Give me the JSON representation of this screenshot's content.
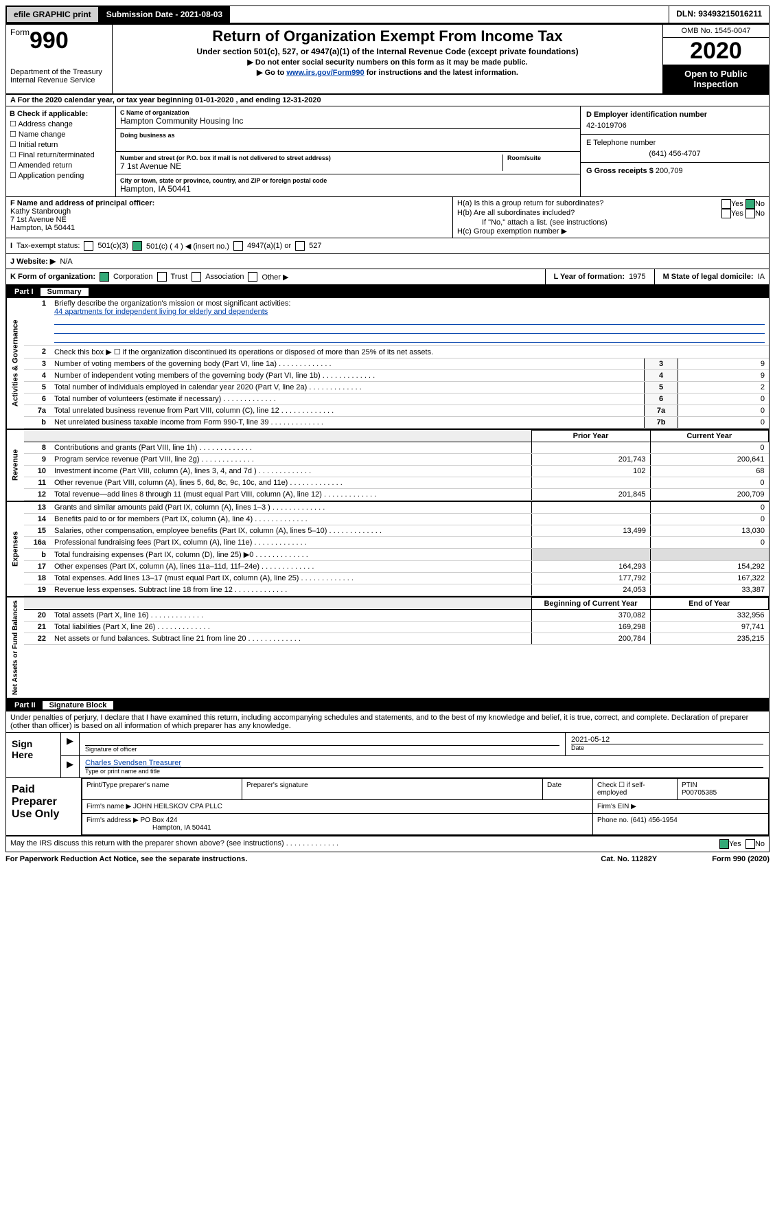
{
  "topbar": {
    "efile": "efile GRAPHIC print",
    "submission": "Submission Date - 2021-08-03",
    "dln": "DLN: 93493215016211"
  },
  "header": {
    "form_prefix": "Form",
    "form_num": "990",
    "dept": "Department of the Treasury\nInternal Revenue Service",
    "title": "Return of Organization Exempt From Income Tax",
    "sub": "Under section 501(c), 527, or 4947(a)(1) of the Internal Revenue Code (except private foundations)",
    "l1": "▶ Do not enter social security numbers on this form as it may be made public.",
    "l2_pre": "▶ Go to ",
    "l2_link": "www.irs.gov/Form990",
    "l2_post": " for instructions and the latest information.",
    "omb": "OMB No. 1545-0047",
    "year": "2020",
    "open": "Open to Public Inspection"
  },
  "period": "A For the 2020 calendar year, or tax year beginning 01-01-2020     , and ending 12-31-2020",
  "boxB": {
    "title": "B Check if applicable:",
    "items": [
      "Address change",
      "Name change",
      "Initial return",
      "Final return/terminated",
      "Amended return",
      "Application pending"
    ]
  },
  "boxC": {
    "label_name": "C Name of organization",
    "name": "Hampton Community Housing Inc",
    "label_dba": "Doing business as",
    "label_addr": "Number and street (or P.O. box if mail is not delivered to street address)",
    "room": "Room/suite",
    "addr": "7 1st Avenue NE",
    "label_city": "City or town, state or province, country, and ZIP or foreign postal code",
    "city": "Hampton, IA  50441"
  },
  "boxD": {
    "label": "D Employer identification number",
    "val": "42-1019706"
  },
  "boxE": {
    "label": "E Telephone number",
    "val": "(641) 456-4707"
  },
  "boxG": {
    "label": "G Gross receipts $",
    "val": "200,709"
  },
  "boxF": {
    "label": "F  Name and address of principal officer:",
    "l1": "Kathy Stanbrough",
    "l2": "7 1st Avenue NE",
    "l3": "Hampton, IA  50441"
  },
  "boxH": {
    "a": "H(a)  Is this a group return for subordinates?",
    "b": "H(b)  Are all subordinates included?",
    "bnote": "If \"No,\" attach a list. (see instructions)",
    "c": "H(c)  Group exemption number ▶",
    "yes": "Yes",
    "no": "No"
  },
  "rowI": {
    "label": "Tax-exempt status:",
    "o1": "501(c)(3)",
    "o2": "501(c) ( 4 ) ◀ (insert no.)",
    "o3": "4947(a)(1) or",
    "o4": "527"
  },
  "rowJ": {
    "label": "J   Website: ▶",
    "val": "N/A"
  },
  "rowK": {
    "label": "K Form of organization:",
    "o1": "Corporation",
    "o2": "Trust",
    "o3": "Association",
    "o4": "Other ▶"
  },
  "rowL": {
    "label": "L Year of formation:",
    "val": "1975"
  },
  "rowM": {
    "label": "M State of legal domicile:",
    "val": "IA"
  },
  "part1": {
    "num": "Part I",
    "title": "Summary"
  },
  "summary": {
    "side1": "Activities & Governance",
    "q1": "Briefly describe the organization's mission or most significant activities:",
    "q1v": "44 apartments for independent living for elderly and dependents",
    "q2": "Check this box ▶ ☐  if the organization discontinued its operations or disposed of more than 25% of its net assets.",
    "q3": "Number of voting members of the governing body (Part VI, line 1a)",
    "q4": "Number of independent voting members of the governing body (Part VI, line 1b)",
    "q5": "Total number of individuals employed in calendar year 2020 (Part V, line 2a)",
    "q6": "Total number of volunteers (estimate if necessary)",
    "q7a": "Total unrelated business revenue from Part VIII, column (C), line 12",
    "q7b": "Net unrelated business taxable income from Form 990-T, line 39",
    "v3": "9",
    "v4": "9",
    "v5": "2",
    "v6": "0",
    "v7a": "0",
    "v7b": "0"
  },
  "rev": {
    "side": "Revenue",
    "h_prior": "Prior Year",
    "h_curr": "Current Year",
    "rows": [
      {
        "n": "8",
        "t": "Contributions and grants (Part VIII, line 1h)",
        "p": "",
        "c": "0"
      },
      {
        "n": "9",
        "t": "Program service revenue (Part VIII, line 2g)",
        "p": "201,743",
        "c": "200,641"
      },
      {
        "n": "10",
        "t": "Investment income (Part VIII, column (A), lines 3, 4, and 7d )",
        "p": "102",
        "c": "68"
      },
      {
        "n": "11",
        "t": "Other revenue (Part VIII, column (A), lines 5, 6d, 8c, 9c, 10c, and 11e)",
        "p": "",
        "c": "0"
      },
      {
        "n": "12",
        "t": "Total revenue—add lines 8 through 11 (must equal Part VIII, column (A), line 12)",
        "p": "201,845",
        "c": "200,709"
      }
    ]
  },
  "exp": {
    "side": "Expenses",
    "rows": [
      {
        "n": "13",
        "t": "Grants and similar amounts paid (Part IX, column (A), lines 1–3 )",
        "p": "",
        "c": "0"
      },
      {
        "n": "14",
        "t": "Benefits paid to or for members (Part IX, column (A), line 4)",
        "p": "",
        "c": "0"
      },
      {
        "n": "15",
        "t": "Salaries, other compensation, employee benefits (Part IX, column (A), lines 5–10)",
        "p": "13,499",
        "c": "13,030"
      },
      {
        "n": "16a",
        "t": "Professional fundraising fees (Part IX, column (A), line 11e)",
        "p": "",
        "c": "0"
      },
      {
        "n": "b",
        "t": "Total fundraising expenses (Part IX, column (D), line 25) ▶0",
        "p": "—",
        "c": "—"
      },
      {
        "n": "17",
        "t": "Other expenses (Part IX, column (A), lines 11a–11d, 11f–24e)",
        "p": "164,293",
        "c": "154,292"
      },
      {
        "n": "18",
        "t": "Total expenses. Add lines 13–17 (must equal Part IX, column (A), line 25)",
        "p": "177,792",
        "c": "167,322"
      },
      {
        "n": "19",
        "t": "Revenue less expenses. Subtract line 18 from line 12",
        "p": "24,053",
        "c": "33,387"
      }
    ]
  },
  "net": {
    "side": "Net Assets or Fund Balances",
    "h_beg": "Beginning of Current Year",
    "h_end": "End of Year",
    "rows": [
      {
        "n": "20",
        "t": "Total assets (Part X, line 16)",
        "p": "370,082",
        "c": "332,956"
      },
      {
        "n": "21",
        "t": "Total liabilities (Part X, line 26)",
        "p": "169,298",
        "c": "97,741"
      },
      {
        "n": "22",
        "t": "Net assets or fund balances. Subtract line 21 from line 20",
        "p": "200,784",
        "c": "235,215"
      }
    ]
  },
  "part2": {
    "num": "Part II",
    "title": "Signature Block"
  },
  "perjury": "Under penalties of perjury, I declare that I have examined this return, including accompanying schedules and statements, and to the best of my knowledge and belief, it is true, correct, and complete. Declaration of preparer (other than officer) is based on all information of which preparer has any knowledge.",
  "sign": {
    "left": "Sign Here",
    "date": "2021-05-12",
    "l_sig": "Signature of officer",
    "l_date": "Date",
    "name": "Charles Svendsen  Treasurer",
    "l_name": "Type or print name and title"
  },
  "paid": {
    "left": "Paid Preparer Use Only",
    "h1": "Print/Type preparer's name",
    "h2": "Preparer's signature",
    "h3": "Date",
    "h4": "Check ☐ if self-employed",
    "h5": "PTIN",
    "ptin": "P00705385",
    "firm_l": "Firm's name    ▶",
    "firm": "JOHN HEILSKOV CPA PLLC",
    "ein_l": "Firm's EIN ▶",
    "addr_l": "Firm's address ▶",
    "addr": "PO Box 424",
    "city": "Hampton, IA  50441",
    "phone_l": "Phone no.",
    "phone": "(641) 456-1954"
  },
  "discuss": {
    "q": "May the IRS discuss this return with the preparer shown above? (see instructions)",
    "yes": "Yes",
    "no": "No"
  },
  "foot": {
    "l": "For Paperwork Reduction Act Notice, see the separate instructions.",
    "m": "Cat. No. 11282Y",
    "r": "Form 990 (2020)"
  }
}
